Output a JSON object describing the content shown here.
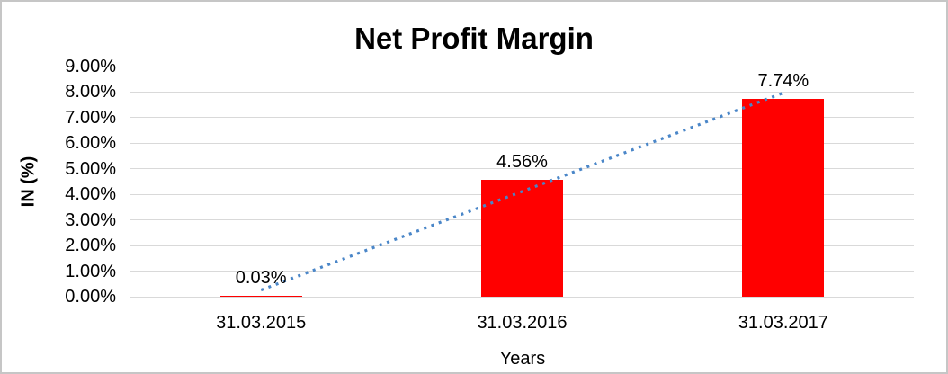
{
  "chart_data": {
    "type": "bar",
    "title": "Net Profit Margin",
    "xlabel": "Years",
    "ylabel": "IN (%)",
    "categories": [
      "31.03.2015",
      "31.03.2016",
      "31.03.2017"
    ],
    "values": [
      0.03,
      4.56,
      7.74
    ],
    "data_labels": [
      "0.03%",
      "4.56%",
      "7.74%"
    ],
    "ylim": [
      0,
      9
    ],
    "y_ticks": [
      "0.00%",
      "1.00%",
      "2.00%",
      "3.00%",
      "4.00%",
      "5.00%",
      "6.00%",
      "7.00%",
      "8.00%",
      "9.00%"
    ],
    "grid": true,
    "legend": "none",
    "bar_color": "#FF0000",
    "gridline_color": "#D9D9D9",
    "trendline": {
      "type": "linear",
      "style": "dotted",
      "color": "#4A86C8",
      "fit_values": [
        0.26,
        4.11,
        7.97
      ]
    }
  }
}
